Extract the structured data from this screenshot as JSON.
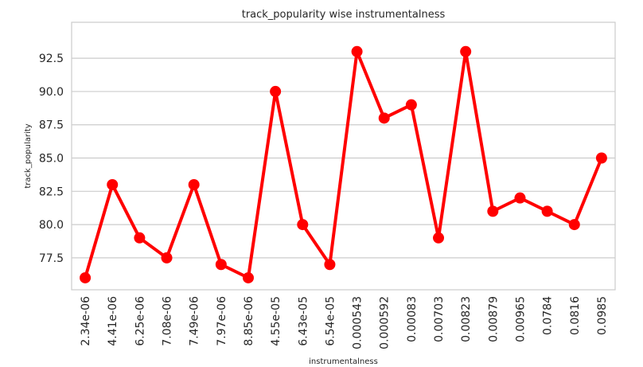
{
  "chart_data": {
    "type": "line",
    "title": "track_popularity wise instrumentalness",
    "xlabel": "instrumentalness",
    "ylabel": "track_popularity",
    "categories": [
      "2.34e-06",
      "4.41e-06",
      "6.25e-06",
      "7.08e-06",
      "7.49e-06",
      "7.97e-06",
      "8.85e-06",
      "4.55e-05",
      "6.43e-05",
      "6.54e-05",
      "0.000543",
      "0.000592",
      "0.00083",
      "0.00703",
      "0.00823",
      "0.00879",
      "0.00965",
      "0.0784",
      "0.0816",
      "0.0985"
    ],
    "values": [
      76,
      83,
      79,
      77.5,
      83,
      77,
      76,
      90,
      80,
      77,
      93,
      88,
      89,
      79,
      93,
      81,
      82,
      81,
      80,
      85
    ],
    "yticks": [
      "77.5",
      "80.0",
      "82.5",
      "85.0",
      "87.5",
      "90.0",
      "92.5"
    ],
    "ylim": [
      75.1,
      95.2
    ],
    "grid": "horizontal",
    "line_color": "#ff0000"
  }
}
